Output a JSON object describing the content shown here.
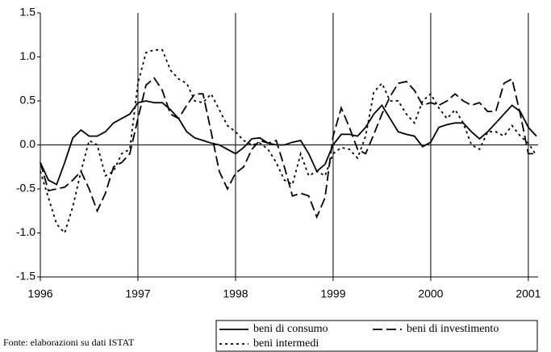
{
  "chart_data": {
    "type": "line",
    "source": "Fonte: elaborazioni su dati ISTAT",
    "x": [
      1996,
      1996.083,
      1996.167,
      1996.25,
      1996.333,
      1996.417,
      1996.5,
      1996.583,
      1996.667,
      1996.75,
      1996.833,
      1996.917,
      1997,
      1997.083,
      1997.167,
      1997.25,
      1997.333,
      1997.417,
      1997.5,
      1997.583,
      1997.667,
      1997.75,
      1997.833,
      1997.917,
      1998,
      1998.083,
      1998.167,
      1998.25,
      1998.333,
      1998.417,
      1998.5,
      1998.583,
      1998.667,
      1998.75,
      1998.833,
      1998.917,
      1999,
      1999.083,
      1999.167,
      1999.25,
      1999.333,
      1999.417,
      1999.5,
      1999.583,
      1999.667,
      1999.75,
      1999.833,
      1999.917,
      2000,
      2000.083,
      2000.167,
      2000.25,
      2000.333,
      2000.417,
      2000.5,
      2000.583,
      2000.667,
      2000.75,
      2000.833,
      2000.917,
      2001,
      2001.083
    ],
    "series": [
      {
        "name": "beni di consumo",
        "color": "#000000",
        "dash": "solid",
        "values": [
          -0.2,
          -0.4,
          -0.45,
          -0.2,
          0.08,
          0.17,
          0.1,
          0.1,
          0.15,
          0.25,
          0.3,
          0.35,
          0.48,
          0.5,
          0.48,
          0.48,
          0.4,
          0.3,
          0.15,
          0.08,
          0.05,
          0.02,
          0.0,
          -0.05,
          -0.1,
          -0.03,
          0.07,
          0.08,
          0.02,
          0.0,
          0.0,
          0.03,
          0.05,
          -0.1,
          -0.3,
          -0.22,
          0.0,
          0.12,
          0.12,
          0.1,
          0.2,
          0.35,
          0.45,
          0.3,
          0.15,
          0.12,
          0.1,
          -0.02,
          0.03,
          0.2,
          0.23,
          0.25,
          0.25,
          0.15,
          0.07,
          0.15,
          0.25,
          0.35,
          0.45,
          0.38,
          0.2,
          0.1
        ]
      },
      {
        "name": "beni di investimento",
        "color": "#000000",
        "dash": "long",
        "values": [
          -0.2,
          -0.52,
          -0.5,
          -0.48,
          -0.4,
          -0.3,
          -0.5,
          -0.75,
          -0.55,
          -0.25,
          -0.2,
          -0.1,
          0.3,
          0.68,
          0.76,
          0.62,
          0.35,
          0.3,
          0.45,
          0.58,
          0.58,
          0.15,
          -0.3,
          -0.5,
          -0.32,
          -0.25,
          -0.05,
          0.05,
          0.02,
          0.05,
          -0.25,
          -0.58,
          -0.55,
          -0.58,
          -0.82,
          -0.6,
          0.1,
          0.42,
          0.2,
          -0.05,
          -0.1,
          0.12,
          0.35,
          0.55,
          0.7,
          0.72,
          0.62,
          0.45,
          0.48,
          0.45,
          0.5,
          0.58,
          0.5,
          0.45,
          0.48,
          0.38,
          0.38,
          0.7,
          0.75,
          0.35,
          -0.1,
          -0.1
        ]
      },
      {
        "name": "beni intermedi",
        "color": "#000000",
        "dash": "short",
        "values": [
          -0.3,
          -0.6,
          -0.9,
          -1.0,
          -0.7,
          -0.3,
          0.05,
          0.0,
          -0.35,
          -0.3,
          -0.1,
          -0.05,
          0.7,
          1.05,
          1.08,
          1.08,
          0.85,
          0.75,
          0.7,
          0.5,
          0.48,
          0.58,
          0.4,
          0.22,
          0.15,
          0.05,
          0.0,
          0.02,
          -0.05,
          -0.2,
          -0.4,
          -0.45,
          -0.1,
          -0.35,
          -0.3,
          -0.35,
          -0.1,
          -0.03,
          -0.05,
          -0.15,
          0.1,
          0.6,
          0.7,
          0.5,
          0.5,
          0.35,
          0.25,
          0.5,
          0.58,
          0.42,
          0.3,
          0.4,
          0.25,
          0.0,
          -0.05,
          0.15,
          0.15,
          0.1,
          0.22,
          0.1,
          0.02,
          -0.12
        ]
      }
    ],
    "xlim": [
      1996,
      2001.1
    ],
    "xticks": [
      1996,
      1997,
      1998,
      1999,
      2000,
      2001
    ],
    "ylim": [
      -1.5,
      1.5
    ],
    "yticks": [
      -1.5,
      {
        "value": -1,
        "label": "-1.0"
      },
      -0.5,
      {
        "value": 0,
        "label": "0.0"
      },
      0.5,
      {
        "value": 1,
        "label": "1.0"
      },
      1.5
    ],
    "grid": "x"
  }
}
